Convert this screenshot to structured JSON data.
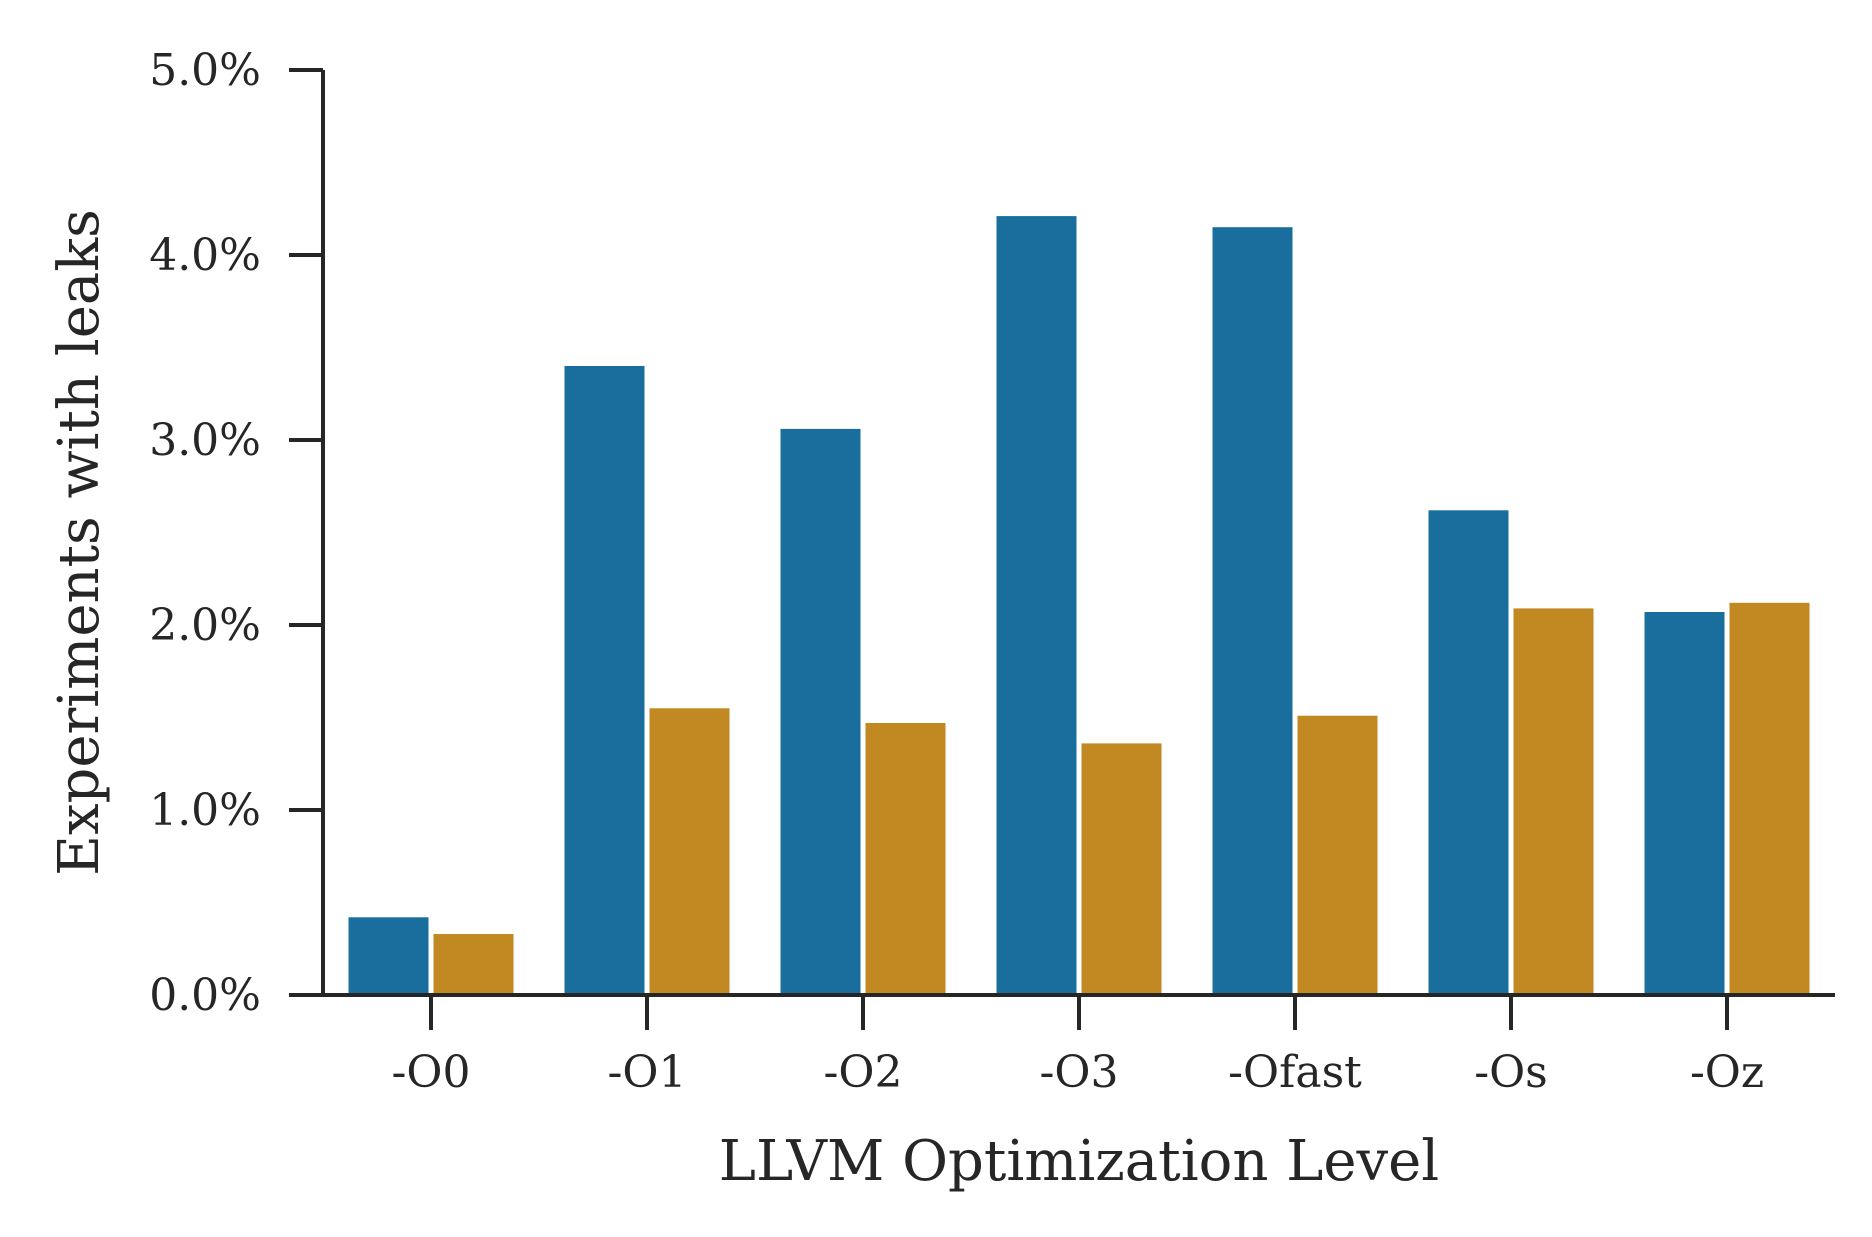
{
  "chart_data": {
    "type": "bar",
    "title": "",
    "xlabel": "LLVM Optimization Level",
    "ylabel": "Experiments with leaks",
    "categories": [
      "-O0",
      "-O1",
      "-O2",
      "-O3",
      "-Ofast",
      "-Os",
      "-Oz"
    ],
    "series": [
      {
        "name": "series-1",
        "color": "#1a6e9d",
        "values": [
          0.42,
          3.4,
          3.06,
          4.21,
          4.15,
          2.62,
          2.07
        ]
      },
      {
        "name": "series-2",
        "color": "#c28821",
        "values": [
          0.33,
          1.55,
          1.47,
          1.36,
          1.51,
          2.09,
          2.12
        ]
      }
    ],
    "ylim": [
      0,
      5
    ],
    "yticks": [
      0,
      1,
      2,
      3,
      4,
      5
    ],
    "ytick_labels": [
      "0.0%",
      "1.0%",
      "2.0%",
      "3.0%",
      "4.0%",
      "5.0%"
    ],
    "grid": false,
    "legend": "none"
  }
}
